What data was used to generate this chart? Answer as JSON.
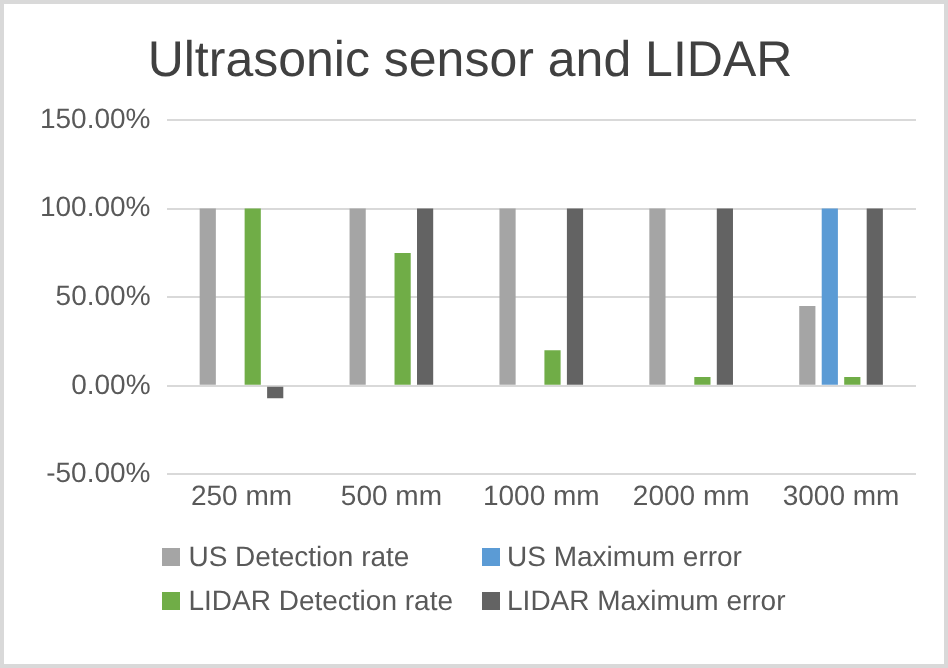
{
  "chart_data": {
    "type": "bar",
    "title": "Ultrasonic sensor and LIDAR",
    "categories": [
      "250 mm",
      "500 mm",
      "1000 mm",
      "2000 mm",
      "3000 mm"
    ],
    "series": [
      {
        "name": "US Detection rate",
        "color": "#a5a5a5",
        "values": [
          100,
          100,
          100,
          100,
          45
        ]
      },
      {
        "name": "US Maximum error",
        "color": "#5b9bd5",
        "values": [
          0,
          0,
          0,
          0,
          100
        ]
      },
      {
        "name": "LIDAR Detection rate",
        "color": "#70ad47",
        "values": [
          100,
          75,
          20,
          5,
          5
        ]
      },
      {
        "name": "LIDAR Maximum error",
        "color": "#636363",
        "values": [
          -7,
          100,
          100,
          100,
          100
        ]
      }
    ],
    "ylim": [
      -50,
      150
    ],
    "yticks": [
      {
        "value": -50,
        "label": "-50.00%"
      },
      {
        "value": 0,
        "label": "0.00%"
      },
      {
        "value": 50,
        "label": "50.00%"
      },
      {
        "value": 100,
        "label": "100.00%"
      },
      {
        "value": 150,
        "label": "150.00%"
      }
    ],
    "grid": "y",
    "legend": "bottom"
  }
}
